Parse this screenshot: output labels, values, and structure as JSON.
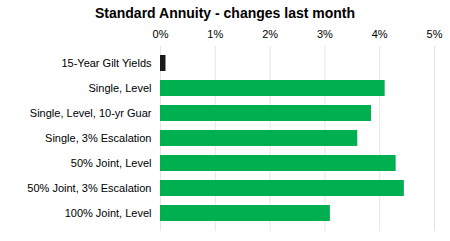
{
  "chart_data": {
    "type": "bar",
    "orientation": "horizontal",
    "title": "Standard Annuity - changes last month",
    "categories": [
      "100% Joint, Level",
      "50% Joint, 3% Escalation",
      "50% Joint, Level",
      "Single, 3% Escalation",
      "Single, Level, 10-yr Guar",
      "Single, Level",
      "15-Year Gilt Yields"
    ],
    "values": [
      3.1,
      4.45,
      4.3,
      3.6,
      3.85,
      4.1,
      0.1
    ],
    "colors": [
      "#00b050",
      "#00b050",
      "#00b050",
      "#00b050",
      "#00b050",
      "#00b050",
      "#1a1a1a"
    ],
    "xlim": [
      0,
      5
    ],
    "xticks": [
      {
        "value": 0,
        "label": "0%"
      },
      {
        "value": 1,
        "label": "1%"
      },
      {
        "value": 2,
        "label": "2%"
      },
      {
        "value": 3,
        "label": "3%"
      },
      {
        "value": 4,
        "label": "4%"
      },
      {
        "value": 5,
        "label": "5%"
      }
    ],
    "grid": true
  }
}
